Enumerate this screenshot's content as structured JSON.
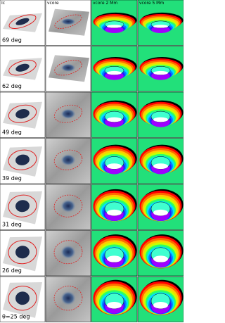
{
  "columns": [
    "Ic",
    "vcore",
    "vcore 2 Mm",
    "vcore 5 Mm"
  ],
  "rows": [
    "69 deg",
    "62 deg",
    "49 deg",
    "39 deg",
    "31 deg",
    "26 deg",
    "θ=25 deg"
  ]
}
